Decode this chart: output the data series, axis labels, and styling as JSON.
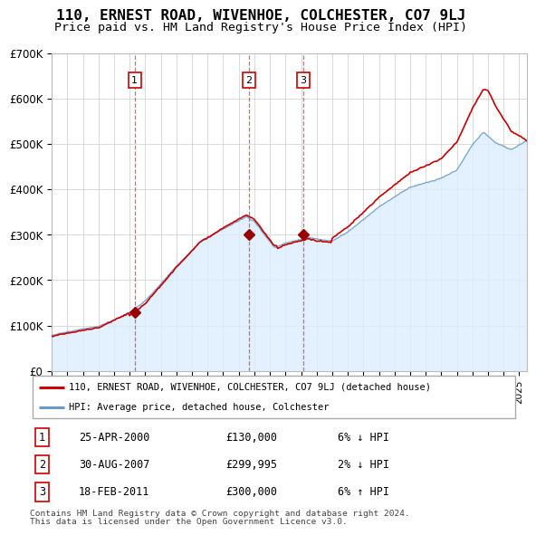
{
  "title": "110, ERNEST ROAD, WIVENHOE, COLCHESTER, CO7 9LJ",
  "subtitle": "Price paid vs. HM Land Registry's House Price Index (HPI)",
  "title_fontsize": 11.5,
  "subtitle_fontsize": 9.5,
  "ylim": [
    0,
    700000
  ],
  "yticks": [
    0,
    100000,
    200000,
    300000,
    400000,
    500000,
    600000,
    700000
  ],
  "ytick_labels": [
    "£0",
    "£100K",
    "£200K",
    "£300K",
    "£400K",
    "£500K",
    "£600K",
    "£700K"
  ],
  "hpi_color": "#a8c8e8",
  "hpi_line_color": "#6699cc",
  "price_color": "#cc0000",
  "sale_color": "#990000",
  "dashed_color": "#dd4444",
  "background_color": "#ffffff",
  "fill_color": "#ddeeff",
  "grid_color": "#cccccc",
  "legend_label_price": "110, ERNEST ROAD, WIVENHOE, COLCHESTER, CO7 9LJ (detached house)",
  "legend_label_hpi": "HPI: Average price, detached house, Colchester",
  "sales": [
    {
      "num": 1,
      "date_label": "25-APR-2000",
      "price": 130000,
      "pct": "6%",
      "dir": "↓",
      "year": 2000.32
    },
    {
      "num": 2,
      "date_label": "30-AUG-2007",
      "price": 299995,
      "pct": "2%",
      "dir": "↓",
      "year": 2007.66
    },
    {
      "num": 3,
      "date_label": "18-FEB-2011",
      "price": 300000,
      "pct": "6%",
      "dir": "↑",
      "year": 2011.13
    }
  ],
  "footer_lines": [
    "Contains HM Land Registry data © Crown copyright and database right 2024.",
    "This data is licensed under the Open Government Licence v3.0."
  ],
  "xmin": 1995.0,
  "xmax": 2025.5
}
